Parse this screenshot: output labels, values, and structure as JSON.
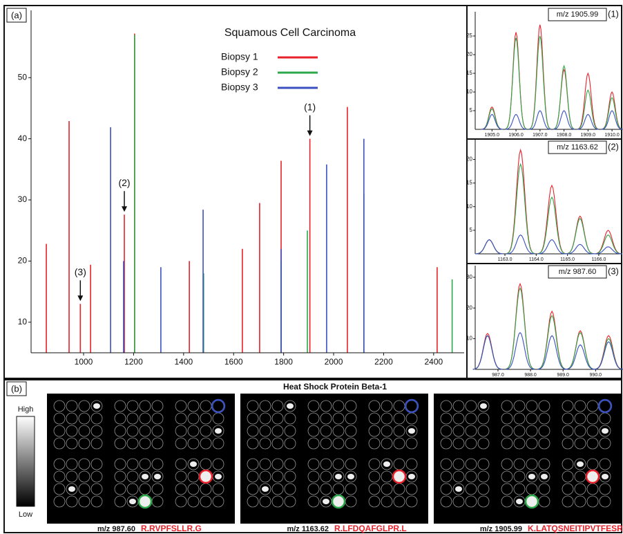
{
  "chart_data": [
    {
      "type": "spectrum",
      "label": "(a)",
      "title": "Squamous Cell Carcinoma",
      "xlim": [
        790,
        2522
      ],
      "xticks": [
        1000,
        1200,
        1400,
        1600,
        1800,
        2000,
        2200,
        2400
      ],
      "ylim": [
        5,
        61
      ],
      "yticks": [
        10,
        20,
        30,
        40,
        50
      ],
      "series": [
        {
          "name": "Biopsy 1",
          "color": "#e8202a",
          "x": [
            851,
            942,
            987,
            1028,
            1163,
            1204,
            1423,
            1635,
            1704,
            1790,
            1905,
            2055,
            2414
          ],
          "values": [
            22.8,
            42.9,
            13,
            19.4,
            27.6,
            57.2,
            20,
            22,
            29.5,
            36.4,
            40,
            45.2,
            19
          ]
        },
        {
          "name": "Biopsy 2",
          "color": "#2ca84a",
          "x": [
            1204,
            1480,
            1790,
            1895,
            2121,
            2474
          ],
          "values": [
            57,
            18,
            20,
            25,
            31,
            17
          ]
        },
        {
          "name": "Biopsy 3",
          "color": "#3a4fc0",
          "x": [
            1108,
            1160,
            1309,
            1478,
            1790,
            1972,
            2121
          ],
          "values": [
            41.9,
            20,
            19,
            28.4,
            22,
            35.8,
            40
          ]
        }
      ],
      "annotations": [
        {
          "text": "(1)",
          "x": 1905
        },
        {
          "text": "(2)",
          "x": 1163
        },
        {
          "text": "(3)",
          "x": 987
        }
      ]
    },
    {
      "type": "line",
      "title": "m/z 1905.99",
      "label": "(1)",
      "x": [
        1905,
        1906,
        1907,
        1908,
        1909,
        1910
      ],
      "xlim": [
        1904.3,
        1910.4
      ],
      "xticks": [
        {
          "value": 1905,
          "label": "1905.0"
        },
        {
          "value": 1906,
          "label": "1906.0"
        },
        {
          "value": 1907,
          "label": "1907.0"
        },
        {
          "value": 1908,
          "label": "1908.0"
        },
        {
          "value": 1909,
          "label": "1909.0"
        },
        {
          "value": 1910,
          "label": "1910.0"
        }
      ],
      "ylim": [
        0,
        30
      ],
      "yticks": [
        5,
        10,
        15,
        20,
        25
      ],
      "series": [
        {
          "name": "Biopsy 1",
          "color": "#e8202a",
          "values": [
            6,
            26,
            28,
            16,
            15,
            10
          ]
        },
        {
          "name": "Biopsy 2",
          "color": "#2ca84a",
          "values": [
            5.5,
            24.5,
            25,
            17,
            10.5,
            8.5
          ]
        },
        {
          "name": "Biopsy 3",
          "color": "#3a4fc0",
          "values": [
            4,
            4,
            5,
            5,
            4,
            5
          ]
        }
      ]
    },
    {
      "type": "line",
      "title": "m/z 1163.62",
      "label": "(2)",
      "x": [
        1162.5,
        1163.5,
        1164.5,
        1165.4,
        1166.3
      ],
      "xlim": [
        1162.05,
        1166.73
      ],
      "xticks": [
        {
          "value": 1163,
          "label": "1163.0"
        },
        {
          "value": 1164,
          "label": "1164.0"
        },
        {
          "value": 1165,
          "label": "1165.0"
        },
        {
          "value": 1166,
          "label": "1166.0"
        }
      ],
      "ylim": [
        0,
        23
      ],
      "yticks": [
        5,
        10,
        15,
        20
      ],
      "series": [
        {
          "name": "Biopsy 1",
          "color": "#e8202a",
          "values": [
            3,
            22,
            14.5,
            8,
            5
          ]
        },
        {
          "name": "Biopsy 2",
          "color": "#2ca84a",
          "values": [
            3,
            19,
            12,
            7.5,
            4
          ]
        },
        {
          "name": "Biopsy 3",
          "color": "#3a4fc0",
          "values": [
            3,
            4,
            3,
            2,
            1.5
          ]
        }
      ]
    },
    {
      "type": "line",
      "title": "m/z 987.60",
      "label": "(3)",
      "x": [
        986.68,
        987.68,
        988.66,
        989.53,
        990.4
      ],
      "xlim": [
        986.3,
        990.8
      ],
      "xticks": [
        {
          "value": 987,
          "label": "987.0"
        },
        {
          "value": 988,
          "label": "988.0"
        },
        {
          "value": 989,
          "label": "989.0"
        },
        {
          "value": 990,
          "label": "990.0"
        }
      ],
      "ylim": [
        0,
        32
      ],
      "yticks": [
        10,
        20,
        30
      ],
      "series": [
        {
          "name": "Biopsy 1",
          "color": "#e8202a",
          "values": [
            11.7,
            27.9,
            18.9,
            12.6,
            11
          ]
        },
        {
          "name": "Biopsy 2",
          "color": "#2ca84a",
          "values": [
            11,
            26.5,
            17.5,
            12,
            10
          ]
        },
        {
          "name": "Biopsy 3",
          "color": "#3a4fc0",
          "values": [
            11,
            12,
            11,
            8,
            9
          ]
        }
      ]
    }
  ],
  "images": {
    "label": "(b)",
    "title": "Heat Shock Protein Beta-1",
    "high": "High",
    "low": "Low",
    "panels": [
      {
        "mz": "m/z 987.60",
        "peptide": "R.RVPFSLLR.G"
      },
      {
        "mz": "m/z 1163.62",
        "peptide": "R.LFDQAFGLPR.L"
      },
      {
        "mz": "m/z 1905.99",
        "peptide": "K.LATQSNEITIPVTFESR.A"
      }
    ]
  }
}
